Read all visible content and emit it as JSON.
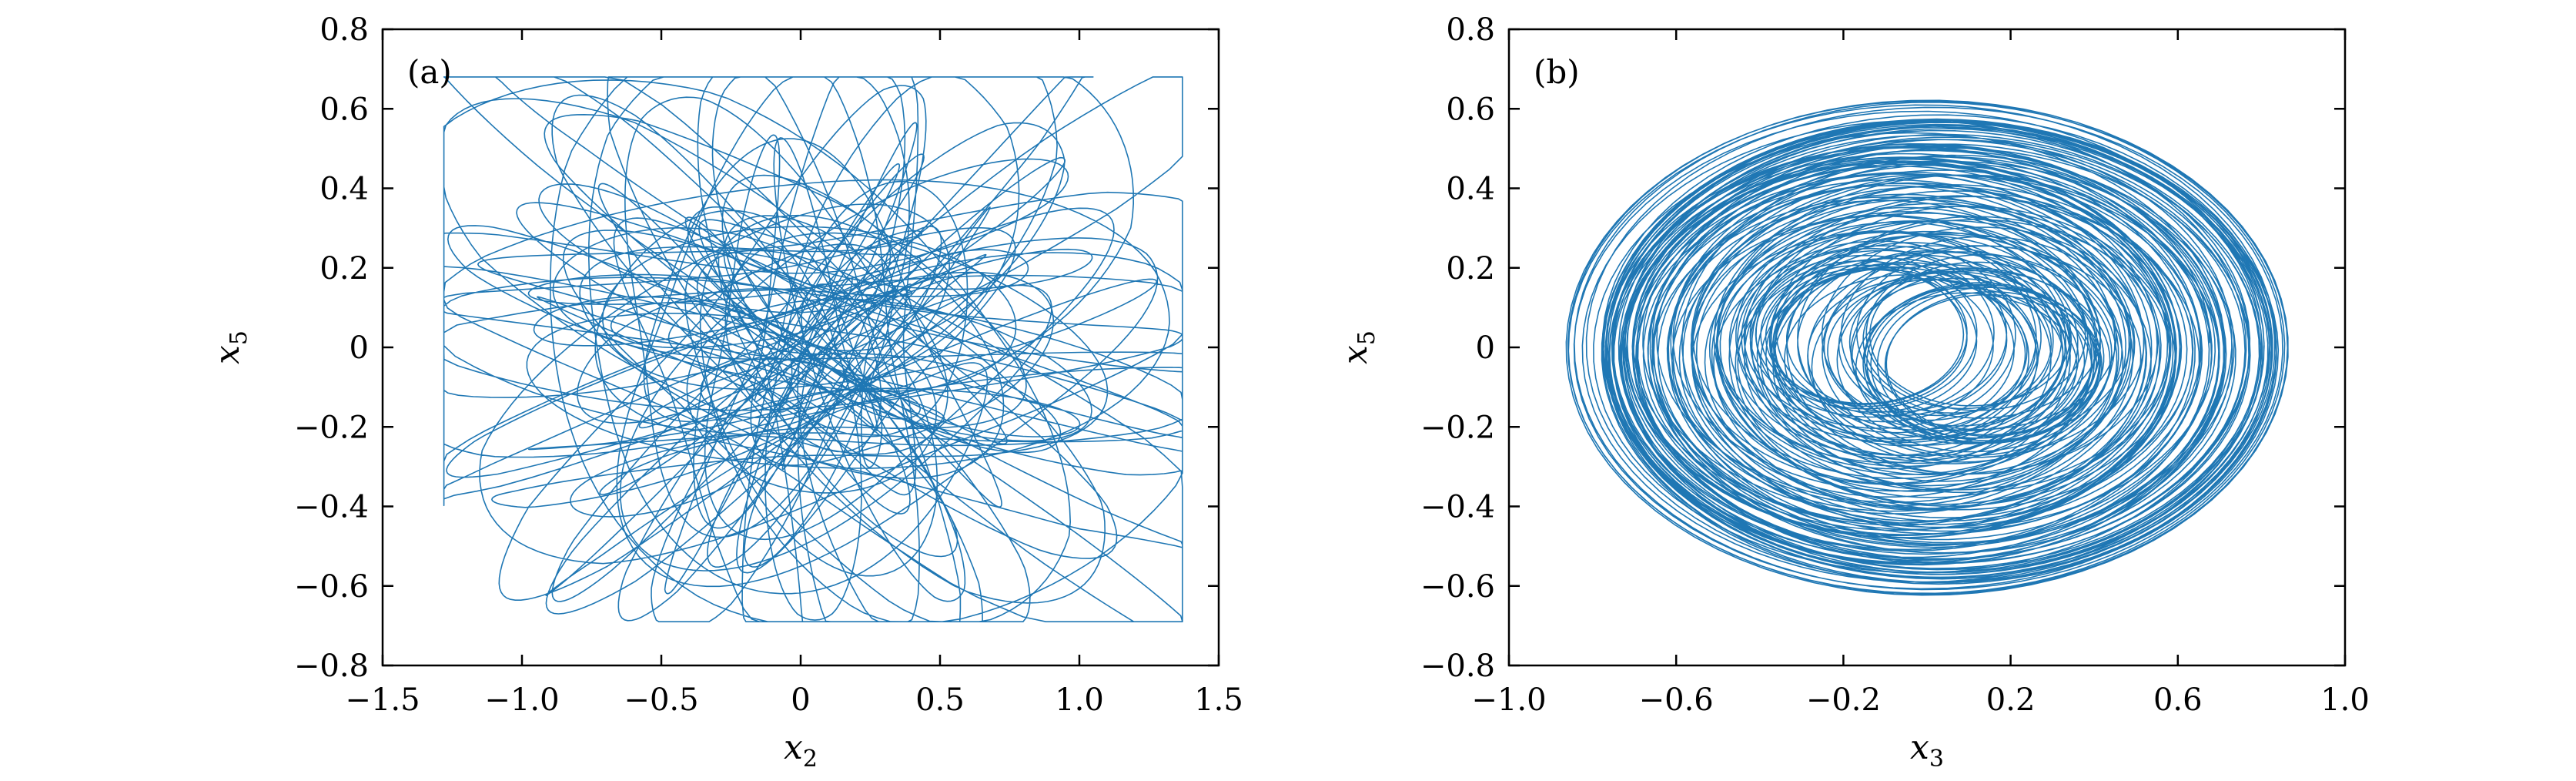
{
  "colors": {
    "trajectory": "#1f77b4",
    "frame": "#000000",
    "background": "#ffffff"
  },
  "chart_data": [
    {
      "type": "line",
      "panel_label": "(a)",
      "xlabel_var": "x",
      "xlabel_sub": "2",
      "ylabel_var": "x",
      "ylabel_sub": "5",
      "xlim": [
        -1.5,
        1.5
      ],
      "ylim": [
        -0.8,
        0.8
      ],
      "xticks": [
        -1.5,
        -1.0,
        -0.5,
        0,
        0.5,
        1.0,
        1.5
      ],
      "xtick_labels": [
        "−1.5",
        "−1.0",
        "−0.5",
        "0",
        "0.5",
        "1.0",
        "1.5"
      ],
      "yticks": [
        -0.8,
        -0.6,
        -0.4,
        -0.2,
        0,
        0.2,
        0.4,
        0.6,
        0.8
      ],
      "ytick_labels": [
        "−0.8",
        "−0.6",
        "−0.4",
        "−0.2",
        "0",
        "0.2",
        "0.4",
        "0.6",
        "0.8"
      ],
      "grid": false,
      "series": [
        {
          "kind": "chaotic-attractor-projection",
          "x_extent": [
            -1.28,
            1.37
          ],
          "y_extent": [
            -0.69,
            0.68
          ],
          "x_center": 0.05,
          "y_center": 0.0
        }
      ]
    },
    {
      "type": "line",
      "panel_label": "(b)",
      "xlabel_var": "x",
      "xlabel_sub": "3",
      "ylabel_var": "x",
      "ylabel_sub": "5",
      "xlim": [
        -1.0,
        1.0
      ],
      "ylim": [
        -0.8,
        0.8
      ],
      "xticks": [
        -1.0,
        -0.6,
        -0.2,
        0.2,
        0.6,
        1.0
      ],
      "xtick_labels": [
        "−1.0",
        "−0.6",
        "−0.2",
        "0.2",
        "0.6",
        "1.0"
      ],
      "yticks": [
        -0.8,
        -0.6,
        -0.4,
        -0.2,
        0,
        0.2,
        0.4,
        0.6,
        0.8
      ],
      "ytick_labels": [
        "−0.8",
        "−0.6",
        "−0.4",
        "−0.2",
        "0",
        "0.2",
        "0.4",
        "0.6",
        "0.8"
      ],
      "grid": false,
      "series": [
        {
          "kind": "chaotic-attractor-projection",
          "x_extent": [
            -0.95,
            0.95
          ],
          "y_extent": [
            -0.69,
            0.68
          ],
          "x_center": 0.0,
          "y_center": 0.0
        }
      ]
    }
  ]
}
